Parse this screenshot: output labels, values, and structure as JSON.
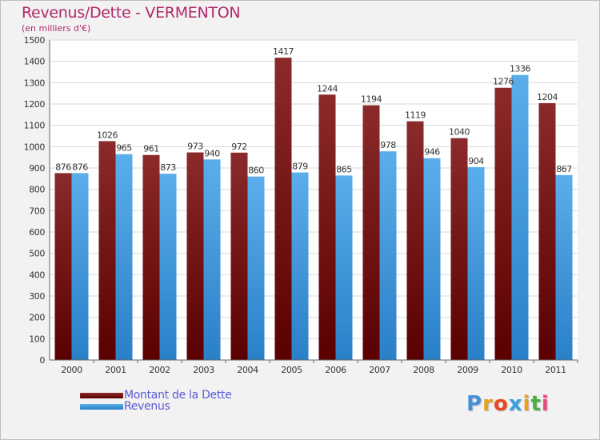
{
  "chart_data": {
    "type": "bar",
    "title": "Revenus/Dette - VERMENTON",
    "subtitle": "(en milliers d'€)",
    "categories": [
      "2000",
      "2001",
      "2002",
      "2003",
      "2004",
      "2005",
      "2006",
      "2007",
      "2008",
      "2009",
      "2010",
      "2011"
    ],
    "series": [
      {
        "name": "Montant de la Dette",
        "color": "#6b0d0d",
        "values": [
          876,
          1026,
          961,
          973,
          972,
          1417,
          1244,
          1194,
          1119,
          1040,
          1276,
          1204
        ]
      },
      {
        "name": "Revenus",
        "color": "#4a9fe0",
        "values": [
          876,
          965,
          873,
          940,
          860,
          879,
          865,
          978,
          946,
          904,
          1336,
          867
        ]
      }
    ],
    "ylim": [
      0,
      1500
    ],
    "yticks": [
      0,
      100,
      200,
      300,
      400,
      500,
      600,
      700,
      800,
      900,
      1000,
      1100,
      1200,
      1300,
      1400,
      1500
    ],
    "grid": true,
    "legend_position": "bottom-left"
  },
  "logo": {
    "letters": [
      "P",
      "r",
      "o",
      "x",
      "i",
      "t",
      "i"
    ],
    "colors": [
      "#4a90d9",
      "#e8a020",
      "#e84a20",
      "#3aa0e0",
      "#e8a020",
      "#4ab040",
      "#e84a80"
    ]
  }
}
